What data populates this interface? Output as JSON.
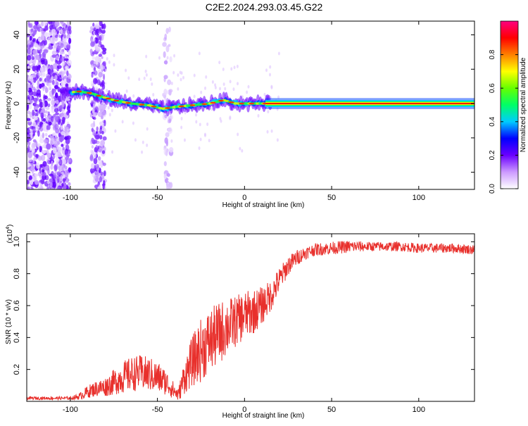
{
  "figure": {
    "title": "C2E2.2024.293.03.45.G22"
  },
  "chart_data": [
    {
      "type": "heatmap",
      "title": "C2E2.2024.293.03.45.G22",
      "xlabel": "Height of straight line (km)",
      "ylabel": "Frequency (Hz)",
      "xlim": [
        -125,
        132
      ],
      "ylim": [
        -50,
        48
      ],
      "x_ticks": [
        "-100",
        "-50",
        "0",
        "50",
        "100"
      ],
      "y_ticks": [
        "40",
        "20",
        "0",
        "-20",
        "-40"
      ],
      "colorbar": {
        "label": "Normalized spectral amplitude",
        "range": [
          0,
          1
        ],
        "ticks": [
          "0.0",
          "0.2",
          "0.4",
          "0.6",
          "0.8"
        ],
        "colors": [
          "#ffffff",
          "#cc99ff",
          "#6a00ff",
          "#0000ff",
          "#00ccff",
          "#00ff66",
          "#66ff00",
          "#ffff00",
          "#ff8000",
          "#ff0000",
          "#ff0080"
        ]
      },
      "ridge": {
        "description_points_km_hz": [
          [
            -105,
            6
          ],
          [
            -95,
            7
          ],
          [
            -88,
            6
          ],
          [
            -82,
            4
          ],
          [
            -75,
            2
          ],
          [
            -65,
            0
          ],
          [
            -55,
            -1
          ],
          [
            -47,
            -3
          ],
          [
            -40,
            -2
          ],
          [
            -30,
            -1
          ],
          [
            -20,
            0
          ],
          [
            -12,
            2
          ],
          [
            -5,
            0
          ],
          [
            5,
            0
          ],
          [
            15,
            0
          ],
          [
            132,
            0
          ]
        ],
        "noise_columns_km": [
          [
            -125,
            -100
          ],
          [
            -88,
            -80
          ],
          [
            -46,
            -42
          ]
        ]
      }
    },
    {
      "type": "line",
      "xlabel": "Height of straight line (km)",
      "ylabel": "SNR (10 * v/v)",
      "y_scale_label": "(x10",
      "y_scale_exp": "4",
      "y_scale_close": ")",
      "xlim": [
        -125,
        132
      ],
      "ylim": [
        0,
        1.05
      ],
      "x_ticks": [
        "-100",
        "-50",
        "0",
        "50",
        "100"
      ],
      "y_ticks": [
        "0.2",
        "0.4",
        "0.6",
        "0.8",
        "1.0"
      ],
      "series": [
        {
          "color": "#e8302c",
          "x": [
            -125,
            -110,
            -100,
            -95,
            -90,
            -85,
            -80,
            -75,
            -70,
            -65,
            -60,
            -55,
            -50,
            -45,
            -40,
            -38,
            -35,
            -30,
            -25,
            -20,
            -15,
            -10,
            -5,
            0,
            5,
            10,
            15,
            20,
            25,
            30,
            35,
            40,
            50,
            60,
            70,
            80,
            90,
            100,
            110,
            120,
            132
          ],
          "y": [
            0.02,
            0.02,
            0.02,
            0.03,
            0.06,
            0.08,
            0.09,
            0.12,
            0.15,
            0.17,
            0.18,
            0.17,
            0.15,
            0.12,
            0.06,
            0.04,
            0.14,
            0.25,
            0.32,
            0.38,
            0.42,
            0.47,
            0.5,
            0.54,
            0.56,
            0.6,
            0.66,
            0.76,
            0.85,
            0.9,
            0.93,
            0.95,
            0.96,
            0.97,
            0.97,
            0.97,
            0.97,
            0.96,
            0.96,
            0.96,
            0.95
          ],
          "spread": [
            0.01,
            0.01,
            0.01,
            0.02,
            0.04,
            0.05,
            0.06,
            0.08,
            0.1,
            0.11,
            0.11,
            0.11,
            0.1,
            0.08,
            0.05,
            0.04,
            0.1,
            0.16,
            0.2,
            0.2,
            0.2,
            0.18,
            0.16,
            0.15,
            0.14,
            0.12,
            0.1,
            0.08,
            0.06,
            0.05,
            0.04,
            0.04,
            0.04,
            0.04,
            0.03,
            0.03,
            0.03,
            0.03,
            0.03,
            0.03,
            0.03
          ]
        }
      ]
    }
  ]
}
